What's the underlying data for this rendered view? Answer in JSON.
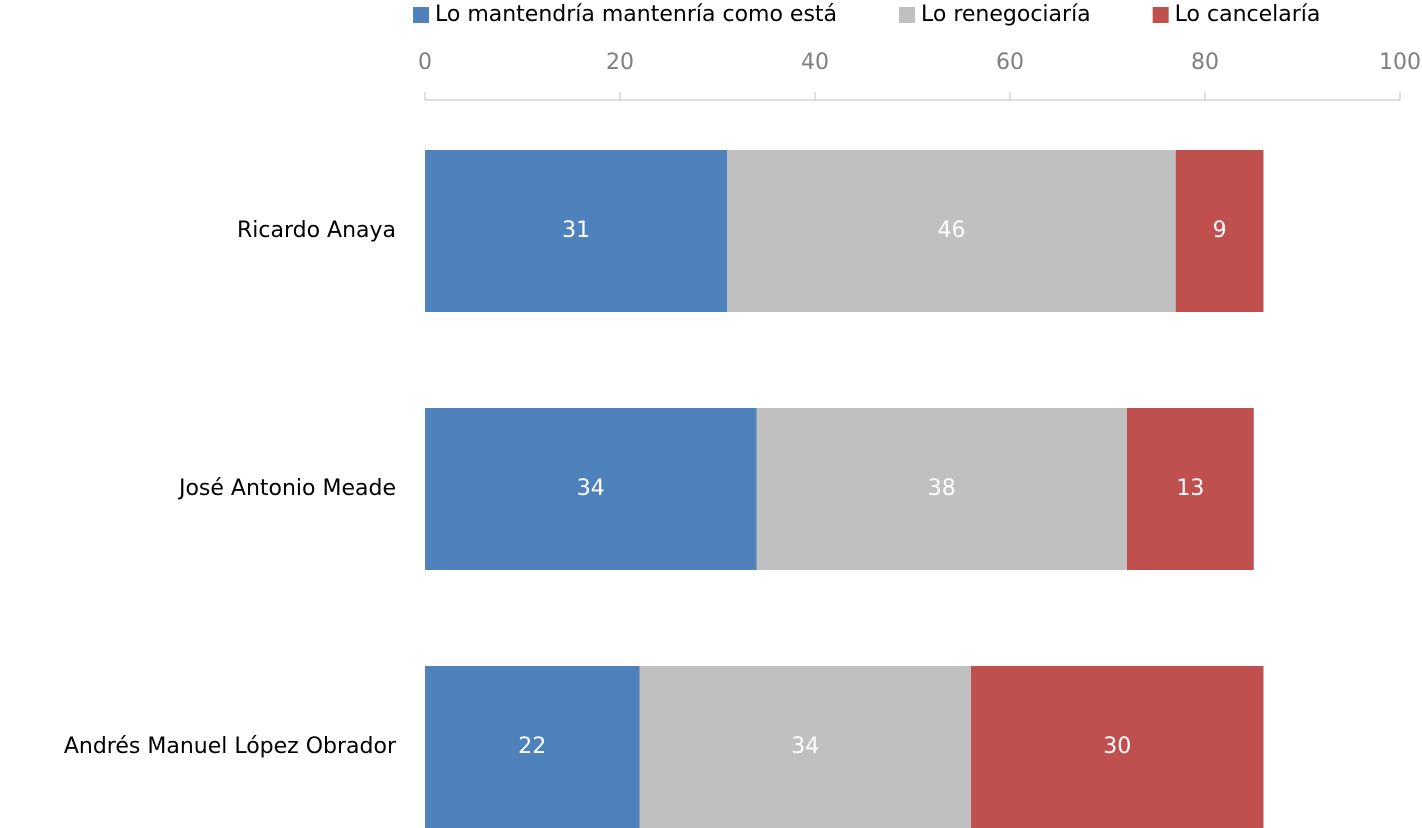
{
  "chart_data": {
    "type": "bar",
    "orientation": "horizontal",
    "stacked": true,
    "categories": [
      "Ricardo Anaya",
      "José Antonio Meade",
      "Andrés Manuel López Obrador"
    ],
    "series": [
      {
        "name": "Lo mantendría mantenría como está",
        "color": "#4f81bd",
        "values": [
          31,
          34,
          22
        ]
      },
      {
        "name": "Lo renegociaría",
        "color": "#c0c0c0",
        "values": [
          46,
          38,
          34
        ]
      },
      {
        "name": "Lo cancelaría",
        "color": "#c0504d",
        "values": [
          9,
          13,
          30
        ]
      }
    ],
    "xlim": [
      0,
      100
    ],
    "xticks": [
      0,
      20,
      40,
      60,
      80,
      100
    ],
    "legend": "top",
    "grid": false
  }
}
